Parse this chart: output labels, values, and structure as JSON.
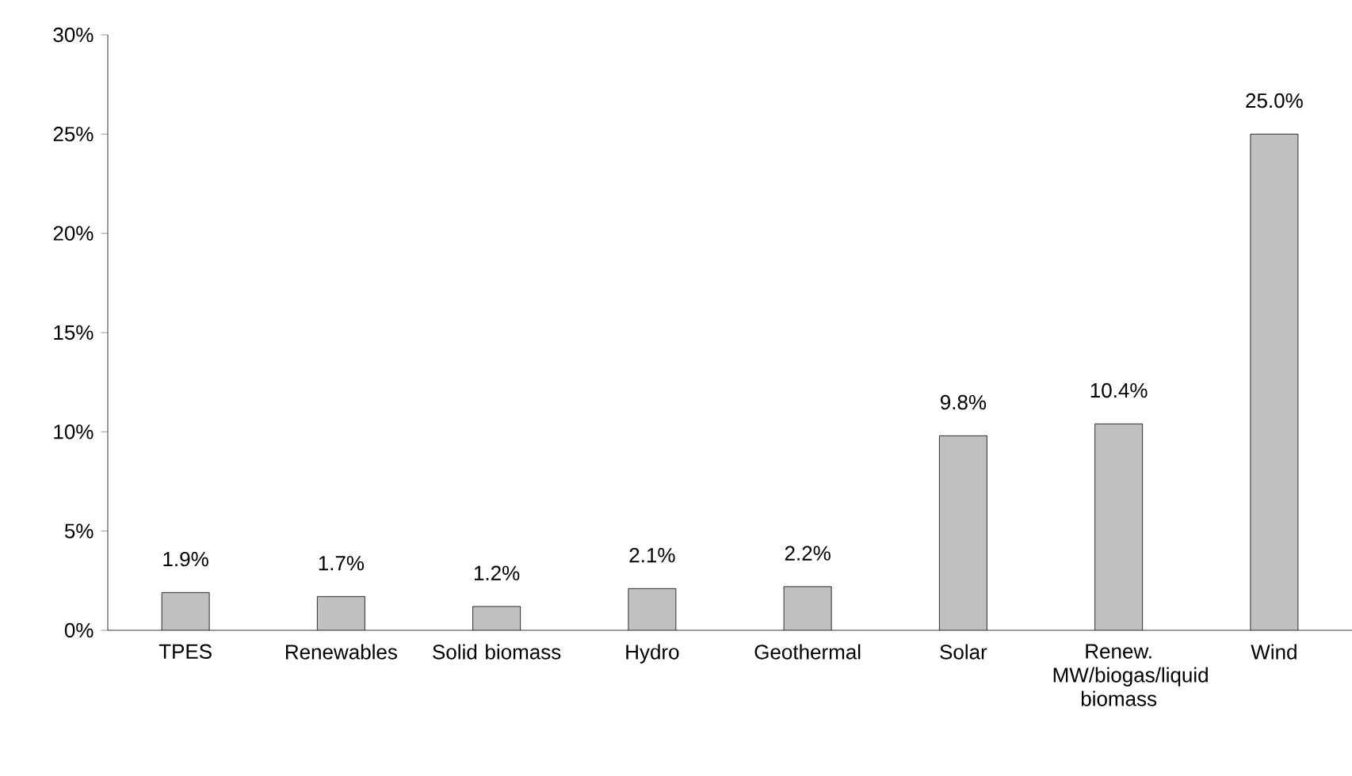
{
  "chart_data": {
    "type": "bar",
    "categories": [
      "TPES",
      "Renewables",
      "Solid biomass",
      "Hydro",
      "Geothermal",
      "Solar",
      "Renew. MW/biogas/liquid biomass",
      "Wind"
    ],
    "values": [
      1.9,
      1.7,
      1.2,
      2.1,
      2.2,
      9.8,
      10.4,
      25.0
    ],
    "value_labels": [
      "1.9%",
      "1.7%",
      "1.2%",
      "2.1%",
      "2.2%",
      "9.8%",
      "10.4%",
      "25.0%"
    ],
    "color": "#c0c0c0",
    "ylim": [
      0,
      30
    ],
    "yticks": [
      {
        "value": 0,
        "label": "0%"
      },
      {
        "value": 5,
        "label": "5%"
      },
      {
        "value": 10,
        "label": "10%"
      },
      {
        "value": 15,
        "label": "15%"
      },
      {
        "value": 20,
        "label": "20%"
      },
      {
        "value": 25,
        "label": "25%"
      },
      {
        "value": 30,
        "label": "30%"
      }
    ],
    "grid": false
  }
}
